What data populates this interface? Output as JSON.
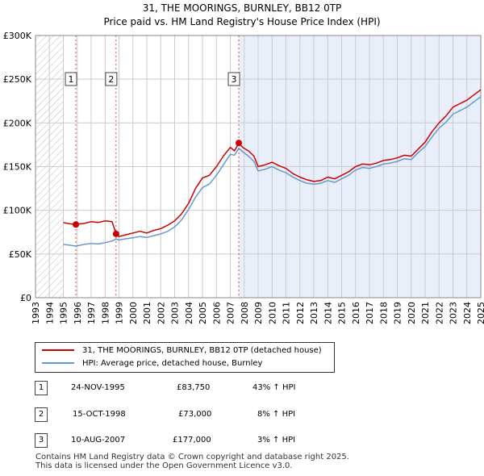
{
  "chart_title": {
    "line1": "31, THE MOORINGS, BURNLEY, BB12 0TP",
    "line2": "Price paid vs. HM Land Registry's House Price Index (HPI)"
  },
  "colors": {
    "price_line": "#cc0000",
    "hpi_line": "#6699cc",
    "shaded_band": "#e8eefa",
    "grid": "#cccccc",
    "marker_dash": "#dd4444"
  },
  "chart_data": {
    "type": "line",
    "x_label": "",
    "y_label": "",
    "xlim": [
      1993,
      2025
    ],
    "ylim": [
      0,
      300000
    ],
    "y_ticks": [
      0,
      50000,
      100000,
      150000,
      200000,
      250000,
      300000
    ],
    "y_tick_labels": [
      "£0",
      "£50K",
      "£100K",
      "£150K",
      "£200K",
      "£250K",
      "£300K"
    ],
    "x_ticks": [
      1993,
      1994,
      1995,
      1996,
      1997,
      1998,
      1999,
      2000,
      2001,
      2002,
      2003,
      2004,
      2005,
      2006,
      2007,
      2008,
      2009,
      2010,
      2011,
      2012,
      2013,
      2014,
      2015,
      2016,
      2017,
      2018,
      2019,
      2020,
      2021,
      2022,
      2023,
      2024,
      2025
    ],
    "x_tick_labels": [
      "1993",
      "1994",
      "1995",
      "1996",
      "1997",
      "1998",
      "1999",
      "2000",
      "2001",
      "2002",
      "2003",
      "2004",
      "2005",
      "2006",
      "2007",
      "2008",
      "2009",
      "2010",
      "2011",
      "2012",
      "2013",
      "2014",
      "2015",
      "2016",
      "2017",
      "2018",
      "2019",
      "2020",
      "2021",
      "2022",
      "2023",
      "2024",
      "2025"
    ],
    "hatched_until": 1995.0,
    "shaded_from": 2007.6,
    "series": [
      {
        "name": "31, THE MOORINGS, BURNLEY, BB12 0TP (detached house)",
        "color": "#cc0000",
        "x": [
          1995.0,
          1995.5,
          1995.9,
          1996.5,
          1997.0,
          1997.5,
          1998.0,
          1998.5,
          1998.79,
          1999.0,
          1999.5,
          2000.0,
          2000.5,
          2001.0,
          2001.5,
          2002.0,
          2002.5,
          2003.0,
          2003.5,
          2004.0,
          2004.5,
          2005.0,
          2005.5,
          2006.0,
          2006.5,
          2007.0,
          2007.3,
          2007.61,
          2007.9,
          2008.3,
          2008.7,
          2009.0,
          2009.5,
          2010.0,
          2010.5,
          2011.0,
          2011.5,
          2012.0,
          2012.5,
          2013.0,
          2013.5,
          2014.0,
          2014.5,
          2015.0,
          2015.5,
          2016.0,
          2016.5,
          2017.0,
          2017.5,
          2018.0,
          2018.5,
          2019.0,
          2019.5,
          2020.0,
          2020.5,
          2021.0,
          2021.5,
          2022.0,
          2022.5,
          2023.0,
          2023.5,
          2024.0,
          2024.5,
          2025.0
        ],
        "values": [
          86000,
          84500,
          84000,
          85000,
          87000,
          86000,
          88000,
          87000,
          73000,
          70000,
          72000,
          74000,
          76000,
          74000,
          77000,
          79000,
          83000,
          88000,
          96000,
          108000,
          125000,
          137000,
          140000,
          150000,
          162000,
          172000,
          168000,
          177000,
          172000,
          168000,
          162000,
          150000,
          152000,
          155000,
          151000,
          148000,
          142000,
          138000,
          135000,
          133000,
          134000,
          138000,
          136000,
          140000,
          144000,
          150000,
          153000,
          152000,
          154000,
          157000,
          158000,
          160000,
          163000,
          162000,
          170000,
          178000,
          190000,
          200000,
          208000,
          218000,
          222000,
          226000,
          232000,
          238000
        ]
      },
      {
        "name": "HPI: Average price, detached house, Burnley",
        "color": "#6699cc",
        "x": [
          1995.0,
          1995.5,
          1995.9,
          1996.5,
          1997.0,
          1997.5,
          1998.0,
          1998.5,
          1998.79,
          1999.0,
          1999.5,
          2000.0,
          2000.5,
          2001.0,
          2001.5,
          2002.0,
          2002.5,
          2003.0,
          2003.5,
          2004.0,
          2004.5,
          2005.0,
          2005.5,
          2006.0,
          2006.5,
          2007.0,
          2007.3,
          2007.61,
          2007.9,
          2008.3,
          2008.7,
          2009.0,
          2009.5,
          2010.0,
          2010.5,
          2011.0,
          2011.5,
          2012.0,
          2012.5,
          2013.0,
          2013.5,
          2014.0,
          2014.5,
          2015.0,
          2015.5,
          2016.0,
          2016.5,
          2017.0,
          2017.5,
          2018.0,
          2018.5,
          2019.0,
          2019.5,
          2020.0,
          2020.5,
          2021.0,
          2021.5,
          2022.0,
          2022.5,
          2023.0,
          2023.5,
          2024.0,
          2024.5,
          2025.0
        ],
        "values": [
          61000,
          60000,
          59000,
          61000,
          62000,
          61500,
          63000,
          65000,
          67000,
          66000,
          67500,
          68500,
          70000,
          69000,
          71000,
          73000,
          76000,
          81000,
          89000,
          101000,
          115000,
          126000,
          130000,
          140000,
          152000,
          164000,
          163000,
          171000,
          167000,
          162000,
          156000,
          145000,
          147000,
          150000,
          146000,
          143000,
          138000,
          134000,
          131000,
          130000,
          131000,
          134000,
          132000,
          136000,
          140000,
          146000,
          149000,
          148000,
          150000,
          153000,
          154000,
          156000,
          159000,
          158000,
          166000,
          173000,
          184000,
          194000,
          201000,
          210000,
          214000,
          218000,
          224000,
          230000
        ]
      }
    ],
    "sale_points": [
      {
        "label": "1",
        "x": 1995.9,
        "y": 83750
      },
      {
        "label": "2",
        "x": 1998.79,
        "y": 73000
      },
      {
        "label": "3",
        "x": 2007.61,
        "y": 177000
      }
    ]
  },
  "legend": {
    "items": [
      {
        "label": "31, THE MOORINGS, BURNLEY, BB12 0TP (detached house)",
        "color": "#cc0000"
      },
      {
        "label": "HPI: Average price, detached house, Burnley",
        "color": "#6699cc"
      }
    ]
  },
  "sales": [
    {
      "num": "1",
      "date": "24-NOV-1995",
      "price": "£83,750",
      "hpi": "43% ↑ HPI"
    },
    {
      "num": "2",
      "date": "15-OCT-1998",
      "price": "£73,000",
      "hpi": "8% ↑ HPI"
    },
    {
      "num": "3",
      "date": "10-AUG-2007",
      "price": "£177,000",
      "hpi": "3% ↑ HPI"
    }
  ],
  "footer": {
    "line1": "Contains HM Land Registry data © Crown copyright and database right 2025.",
    "line2": "This data is licensed under the Open Government Licence v3.0."
  }
}
